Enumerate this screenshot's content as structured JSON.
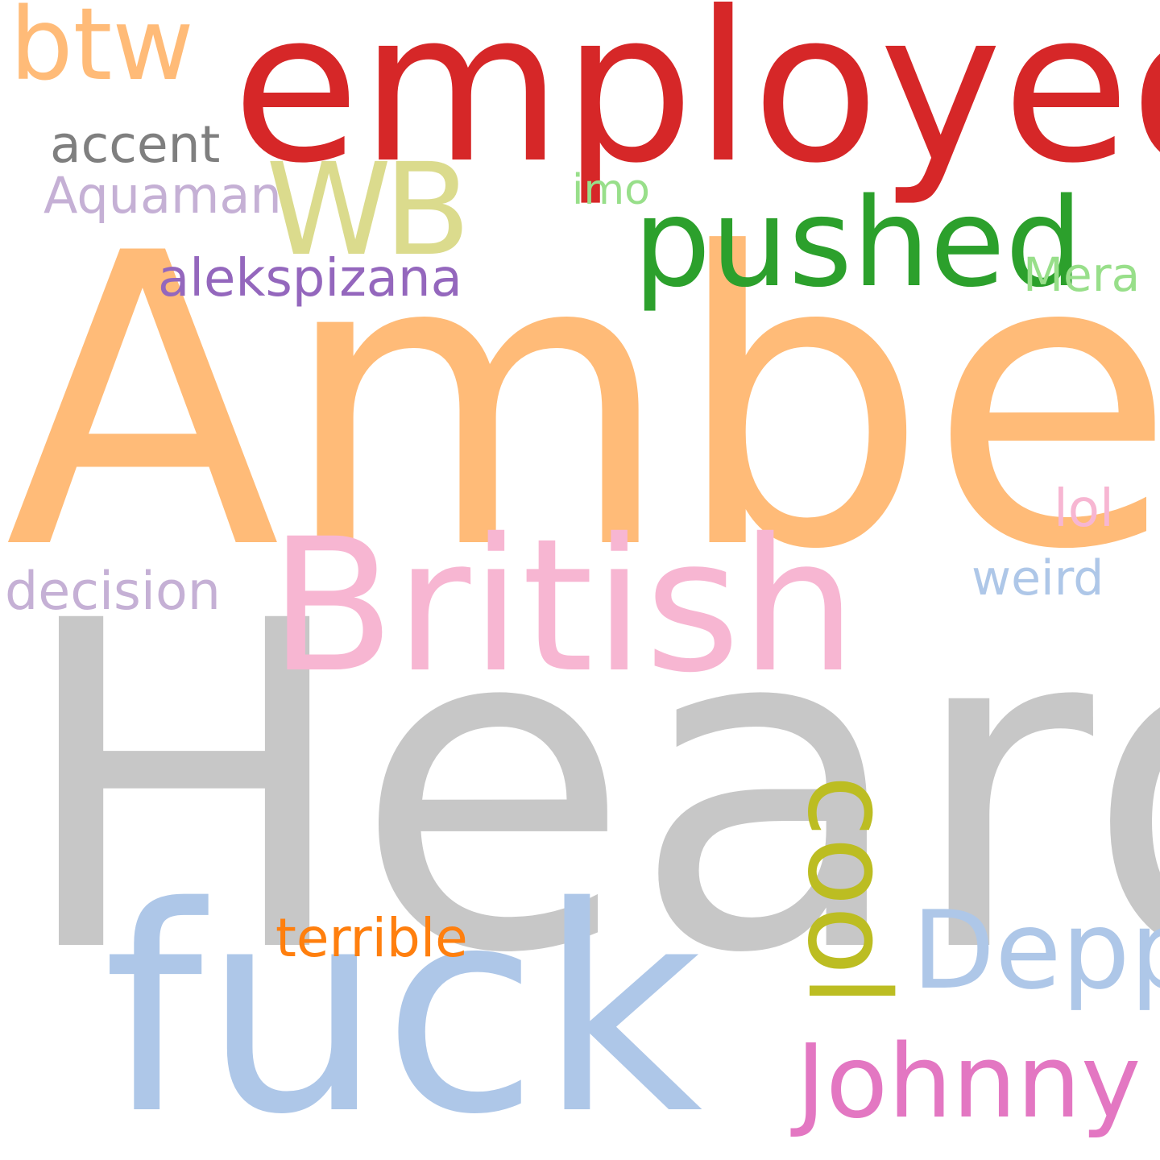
{
  "words": [
    {
      "key": "amber",
      "text": "Amber",
      "color": "#ffbb78"
    },
    {
      "key": "heard",
      "text": "Heard",
      "color": "#c7c7c7"
    },
    {
      "key": "employed",
      "text": "employed",
      "color": "#d62728"
    },
    {
      "key": "fuck",
      "text": "fuck",
      "color": "#aec7e8"
    },
    {
      "key": "british",
      "text": "British",
      "color": "#f7b6d2"
    },
    {
      "key": "cool",
      "text": "cool",
      "color": "#bcbd22"
    },
    {
      "key": "pushed",
      "text": "pushed",
      "color": "#2ca02c"
    },
    {
      "key": "johnny",
      "text": "Johnny",
      "color": "#e377c2"
    },
    {
      "key": "depp",
      "text": "Depp",
      "color": "#aec7e8"
    },
    {
      "key": "wb",
      "text": "WB",
      "color": "#dbdb8d"
    },
    {
      "key": "btw",
      "text": "btw",
      "color": "#ffbb78"
    },
    {
      "key": "alekspizana",
      "text": "alekspizana",
      "color": "#9467bd"
    },
    {
      "key": "terrible",
      "text": "terrible",
      "color": "#ff7f0e"
    },
    {
      "key": "aquaman",
      "text": "Aquaman",
      "color": "#c5b0d5"
    },
    {
      "key": "accent",
      "text": "accent",
      "color": "#7f7f7f"
    },
    {
      "key": "decision",
      "text": "decision",
      "color": "#c5b0d5"
    },
    {
      "key": "mera",
      "text": "Mera",
      "color": "#98df8a"
    },
    {
      "key": "weird",
      "text": "weird",
      "color": "#aec7e8"
    },
    {
      "key": "lol",
      "text": "lol",
      "color": "#f7b6d2"
    },
    {
      "key": "imo",
      "text": "imo",
      "color": "#98df8a"
    }
  ]
}
